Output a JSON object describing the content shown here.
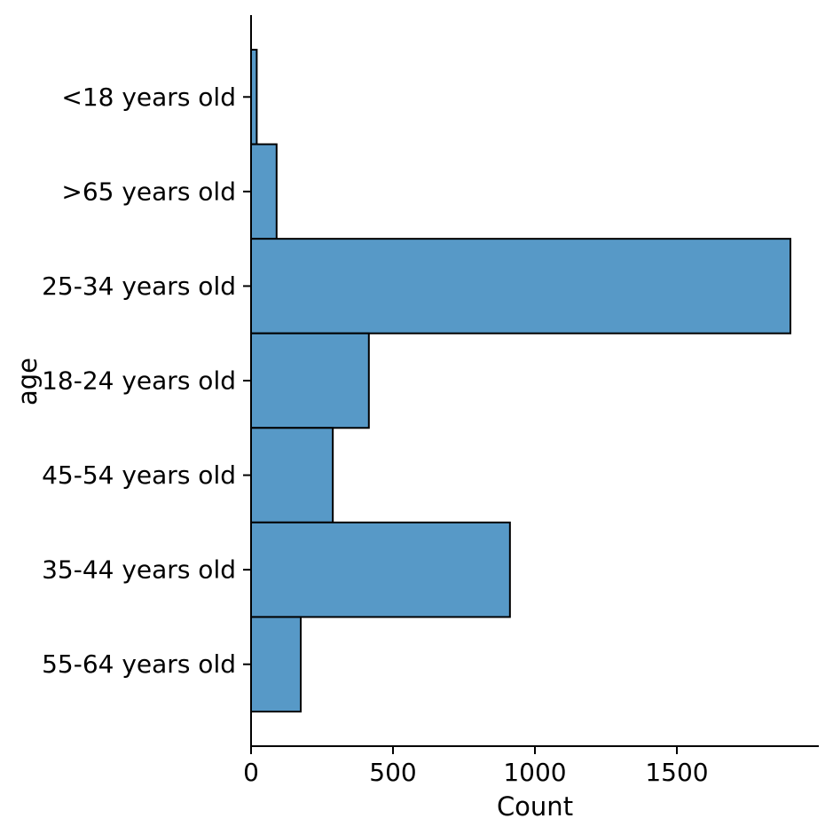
{
  "figure": {
    "background": "#ffffff",
    "axis_color": "#000000",
    "text_color": "#000000"
  },
  "chart_data": {
    "type": "bar",
    "orientation": "horizontal",
    "title": "",
    "xlabel": "Count",
    "ylabel": "age",
    "categories": [
      "<18 years old",
      ">65 years old",
      "25-34 years old",
      "18-24 years old",
      "45-54 years old",
      "35-44 years old",
      "55-64 years old"
    ],
    "values": [
      20,
      90,
      1900,
      415,
      288,
      912,
      175
    ],
    "xlim": [
      0,
      2000
    ],
    "xticks": [
      0,
      500,
      1000,
      1500
    ],
    "xtick_labels": [
      "0",
      "500",
      "1000",
      "1500"
    ],
    "grid": false,
    "legend": null,
    "bar_fill": "#5799C7",
    "bar_edge": "#000000",
    "bars_contiguous": true,
    "spines_visible": [
      "left",
      "bottom"
    ]
  }
}
